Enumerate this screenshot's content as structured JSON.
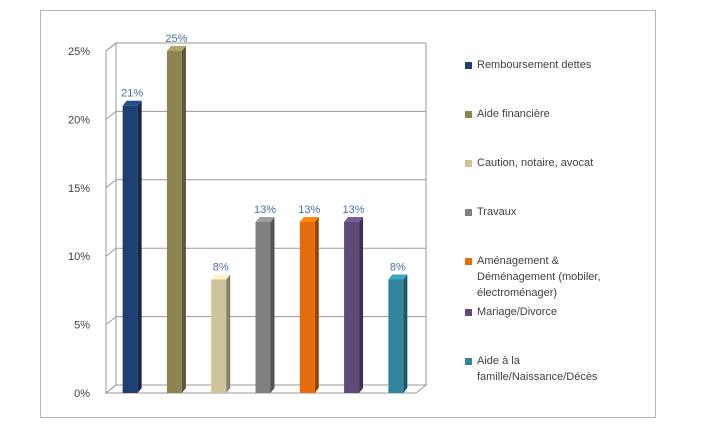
{
  "chart_data": {
    "type": "bar",
    "title": "",
    "xlabel": "",
    "ylabel": "",
    "ylim": [
      0,
      25
    ],
    "yticks": [
      "0%",
      "5%",
      "10%",
      "15%",
      "20%",
      "25%"
    ],
    "grid": true,
    "legend_position": "right",
    "series": [
      {
        "name": "Remboursement dettes",
        "value": 21,
        "label": "21%",
        "color": "#1f3f72"
      },
      {
        "name": "Aide financière",
        "value": 25,
        "label": "25%",
        "color": "#8e8453"
      },
      {
        "name": "Caution, notaire, avocat",
        "value": 8.3,
        "label": "8%",
        "color": "#cfc39c"
      },
      {
        "name": "Travaux",
        "value": 12.5,
        "label": "13%",
        "color": "#808080"
      },
      {
        "name": "Aménagement & Déménagement (mobiler, électroménager)",
        "value": 12.5,
        "label": "13%",
        "color": "#e46c0a"
      },
      {
        "name": "Mariage/Divorce",
        "value": 12.5,
        "label": "13%",
        "color": "#5f4a7b"
      },
      {
        "name": "Aide à la famille/Naissance/Décès",
        "value": 8.3,
        "label": "8%",
        "color": "#31859c"
      }
    ]
  }
}
